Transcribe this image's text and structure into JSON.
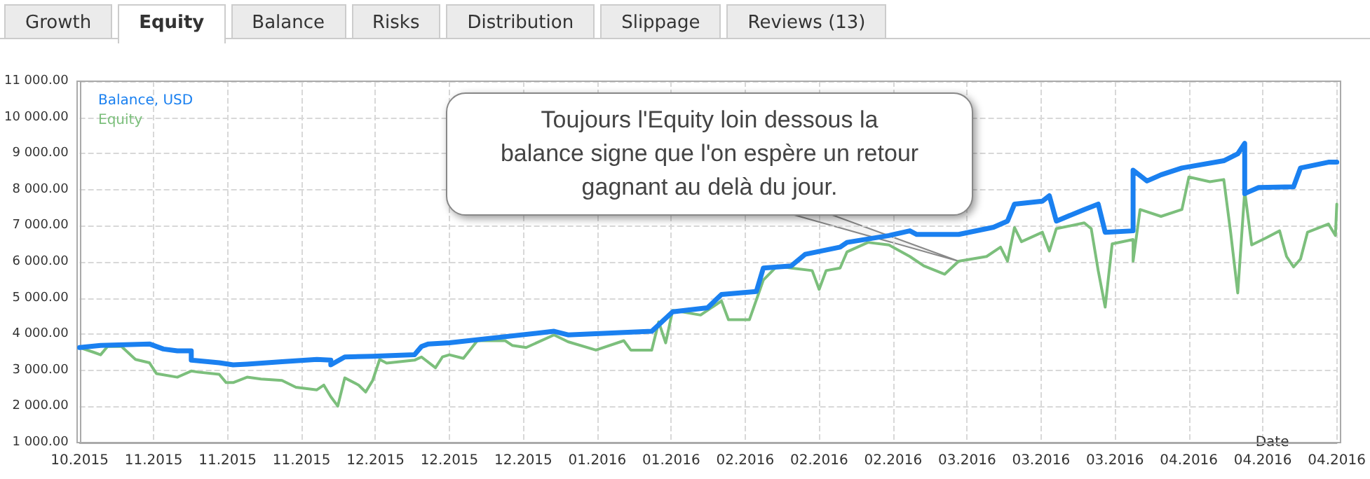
{
  "chart_data": {
    "type": "line",
    "xlabel": "Date",
    "legend": "top left",
    "grid": true,
    "marker": "none",
    "line_style": "solid",
    "annotations": [
      "Growth",
      "Equity",
      "Balance",
      "Risks",
      "Distribution",
      "Slippage",
      "Reviews (13)",
      {
        "text": "Toujours l'Equity loin dessous la\nbalance signe que l'on espère un retour\ngagnant au delà du jour.",
        "x": "2016-03-03",
        "y": 6020
      }
    ],
    "xlim": [
      "2015-10-29",
      "2016-04-26T04:48"
    ],
    "xticks": [
      {
        "value": "2015-10-29",
        "label": "10.2015"
      },
      {
        "value": "2015-11-08T14:24",
        "label": "11.2015"
      },
      {
        "value": "2015-11-19T04:48",
        "label": "11.2015"
      },
      {
        "value": "2015-11-29T19:12",
        "label": "11.2015"
      },
      {
        "value": "2015-12-10T09:36",
        "label": "12.2015"
      },
      {
        "value": "2015-12-21",
        "label": "12.2015"
      },
      {
        "value": "2015-12-31T14:24",
        "label": "12.2015"
      },
      {
        "value": "2016-01-11T04:48",
        "label": "01.2016"
      },
      {
        "value": "2016-01-21T19:12",
        "label": "01.2016"
      },
      {
        "value": "2016-02-01T09:36",
        "label": "02.2016"
      },
      {
        "value": "2016-02-12",
        "label": "02.2016"
      },
      {
        "value": "2016-02-22T14:24",
        "label": "02.2016"
      },
      {
        "value": "2016-03-04T04:48",
        "label": "03.2016"
      },
      {
        "value": "2016-03-14T19:12",
        "label": "03.2016"
      },
      {
        "value": "2016-03-25T09:36",
        "label": "03.2016"
      },
      {
        "value": "2016-04-05",
        "label": "04.2016"
      },
      {
        "value": "2016-04-15T14:24",
        "label": "04.2016"
      },
      {
        "value": "2016-04-26T04:48",
        "label": "04.2016"
      }
    ],
    "ylim": [
      1000,
      11000
    ],
    "yticks": [
      {
        "value": 1000,
        "label": "1 000.00"
      },
      {
        "value": 2000,
        "label": "2 000.00"
      },
      {
        "value": 3000,
        "label": "3 000.00"
      },
      {
        "value": 4000,
        "label": "4 000.00"
      },
      {
        "value": 5000,
        "label": "5 000.00"
      },
      {
        "value": 6000,
        "label": "6 000.00"
      },
      {
        "value": 7000,
        "label": "7 000.00"
      },
      {
        "value": 8000,
        "label": "8 000.00"
      },
      {
        "value": 9000,
        "label": "9 000.00"
      },
      {
        "value": 10000,
        "label": "10 000.00"
      },
      {
        "value": 11000,
        "label": "11 000.00"
      }
    ],
    "series": [
      {
        "name": "Balance, USD",
        "color": "#1a80f0",
        "x": [
          "2015-10-29",
          "2015-11-01",
          "2015-11-08",
          "2015-11-10",
          "2015-11-12",
          "2015-11-14",
          "2015-11-14",
          "2015-11-18",
          "2015-11-20",
          "2015-11-22",
          "2015-11-27",
          "2015-12-02",
          "2015-12-04",
          "2015-12-04",
          "2015-12-06",
          "2015-12-10",
          "2015-12-16",
          "2015-12-17",
          "2015-12-18",
          "2015-12-21",
          "2016-01-05",
          "2016-01-07",
          "2016-01-19",
          "2016-01-22",
          "2016-01-27",
          "2016-01-29",
          "2016-02-03",
          "2016-02-04",
          "2016-02-08",
          "2016-02-10",
          "2016-02-15",
          "2016-02-16",
          "2016-02-22",
          "2016-02-25",
          "2016-02-26",
          "2016-03-03",
          "2016-03-08",
          "2016-03-10",
          "2016-03-11",
          "2016-03-15",
          "2016-03-16",
          "2016-03-17",
          "2016-03-21",
          "2016-03-23",
          "2016-03-24",
          "2016-03-28",
          "2016-03-28",
          "2016-03-30",
          "2016-04-01",
          "2016-04-04",
          "2016-04-10",
          "2016-04-12",
          "2016-04-13",
          "2016-04-13",
          "2016-04-15",
          "2016-04-20",
          "2016-04-21",
          "2016-04-25",
          "2016-04-26T04:48"
        ],
        "values": [
          3630,
          3690,
          3730,
          3590,
          3540,
          3540,
          3280,
          3210,
          3150,
          3170,
          3240,
          3300,
          3280,
          3150,
          3370,
          3390,
          3430,
          3660,
          3730,
          3760,
          4080,
          3980,
          4080,
          4620,
          4730,
          5100,
          5180,
          5830,
          5890,
          6210,
          6410,
          6540,
          6730,
          6860,
          6760,
          6760,
          6960,
          7130,
          7600,
          7680,
          7830,
          7130,
          7450,
          7600,
          6820,
          6860,
          8540,
          8240,
          8410,
          8600,
          8800,
          8990,
          9280,
          7890,
          8060,
          8080,
          8600,
          8760,
          8760
        ]
      },
      {
        "name": "Equity",
        "color": "#7cbf7c",
        "x": [
          "2015-10-29",
          "2015-10-31",
          "2015-11-01",
          "2015-11-02",
          "2015-11-04",
          "2015-11-06",
          "2015-11-08",
          "2015-11-09",
          "2015-11-12",
          "2015-11-14",
          "2015-11-15",
          "2015-11-18",
          "2015-11-19",
          "2015-11-20",
          "2015-11-22",
          "2015-11-24",
          "2015-11-27",
          "2015-11-29",
          "2015-12-02",
          "2015-12-03",
          "2015-12-04",
          "2015-12-05",
          "2015-12-06",
          "2015-12-08",
          "2015-12-09",
          "2015-12-10",
          "2015-12-11",
          "2015-12-12",
          "2015-12-16",
          "2015-12-17",
          "2015-12-19",
          "2015-12-20",
          "2015-12-21",
          "2015-12-23",
          "2015-12-25",
          "2015-12-29",
          "2015-12-30",
          "2016-01-01",
          "2016-01-05",
          "2016-01-07",
          "2016-01-11",
          "2016-01-15",
          "2016-01-16",
          "2016-01-19",
          "2016-01-20",
          "2016-01-21",
          "2016-01-22",
          "2016-01-26",
          "2016-01-29",
          "2016-01-30",
          "2016-02-02",
          "2016-02-04",
          "2016-02-06",
          "2016-02-08",
          "2016-02-11",
          "2016-02-12",
          "2016-02-13",
          "2016-02-15",
          "2016-02-16",
          "2016-02-19",
          "2016-02-22",
          "2016-02-25",
          "2016-02-27",
          "2016-03-01",
          "2016-03-03",
          "2016-03-07",
          "2016-03-09",
          "2016-03-10",
          "2016-03-11",
          "2016-03-12",
          "2016-03-15",
          "2016-03-16",
          "2016-03-17",
          "2016-03-21",
          "2016-03-22",
          "2016-03-23",
          "2016-03-24",
          "2016-03-25",
          "2016-03-28",
          "2016-03-28",
          "2016-03-29",
          "2016-04-01",
          "2016-04-04",
          "2016-04-05",
          "2016-04-08",
          "2016-04-10",
          "2016-04-11",
          "2016-04-12",
          "2016-04-13",
          "2016-04-14",
          "2016-04-16",
          "2016-04-18",
          "2016-04-19",
          "2016-04-20",
          "2016-04-21",
          "2016-04-22",
          "2016-04-25",
          "2016-04-26",
          "2016-04-26T04:48"
        ],
        "values": [
          3630,
          3500,
          3430,
          3660,
          3660,
          3300,
          3210,
          2910,
          2810,
          2980,
          2950,
          2890,
          2660,
          2660,
          2810,
          2760,
          2720,
          2530,
          2460,
          2590,
          2270,
          2010,
          2790,
          2590,
          2400,
          2720,
          3300,
          3200,
          3280,
          3370,
          3070,
          3370,
          3430,
          3330,
          3820,
          3820,
          3690,
          3630,
          3980,
          3790,
          3560,
          3820,
          3560,
          3560,
          4340,
          3760,
          4660,
          4530,
          4920,
          4400,
          4400,
          5500,
          5890,
          5830,
          5760,
          5240,
          5760,
          5830,
          6280,
          6540,
          6470,
          6150,
          5890,
          5660,
          6020,
          6150,
          6410,
          6020,
          6950,
          6560,
          6820,
          6300,
          6920,
          7080,
          6920,
          5760,
          4750,
          6500,
          6620,
          6020,
          7450,
          7260,
          7450,
          8350,
          8220,
          8280,
          6790,
          5140,
          7960,
          6470,
          6660,
          6860,
          6150,
          5860,
          6080,
          6820,
          7050,
          6730,
          7600
        ]
      }
    ]
  }
}
